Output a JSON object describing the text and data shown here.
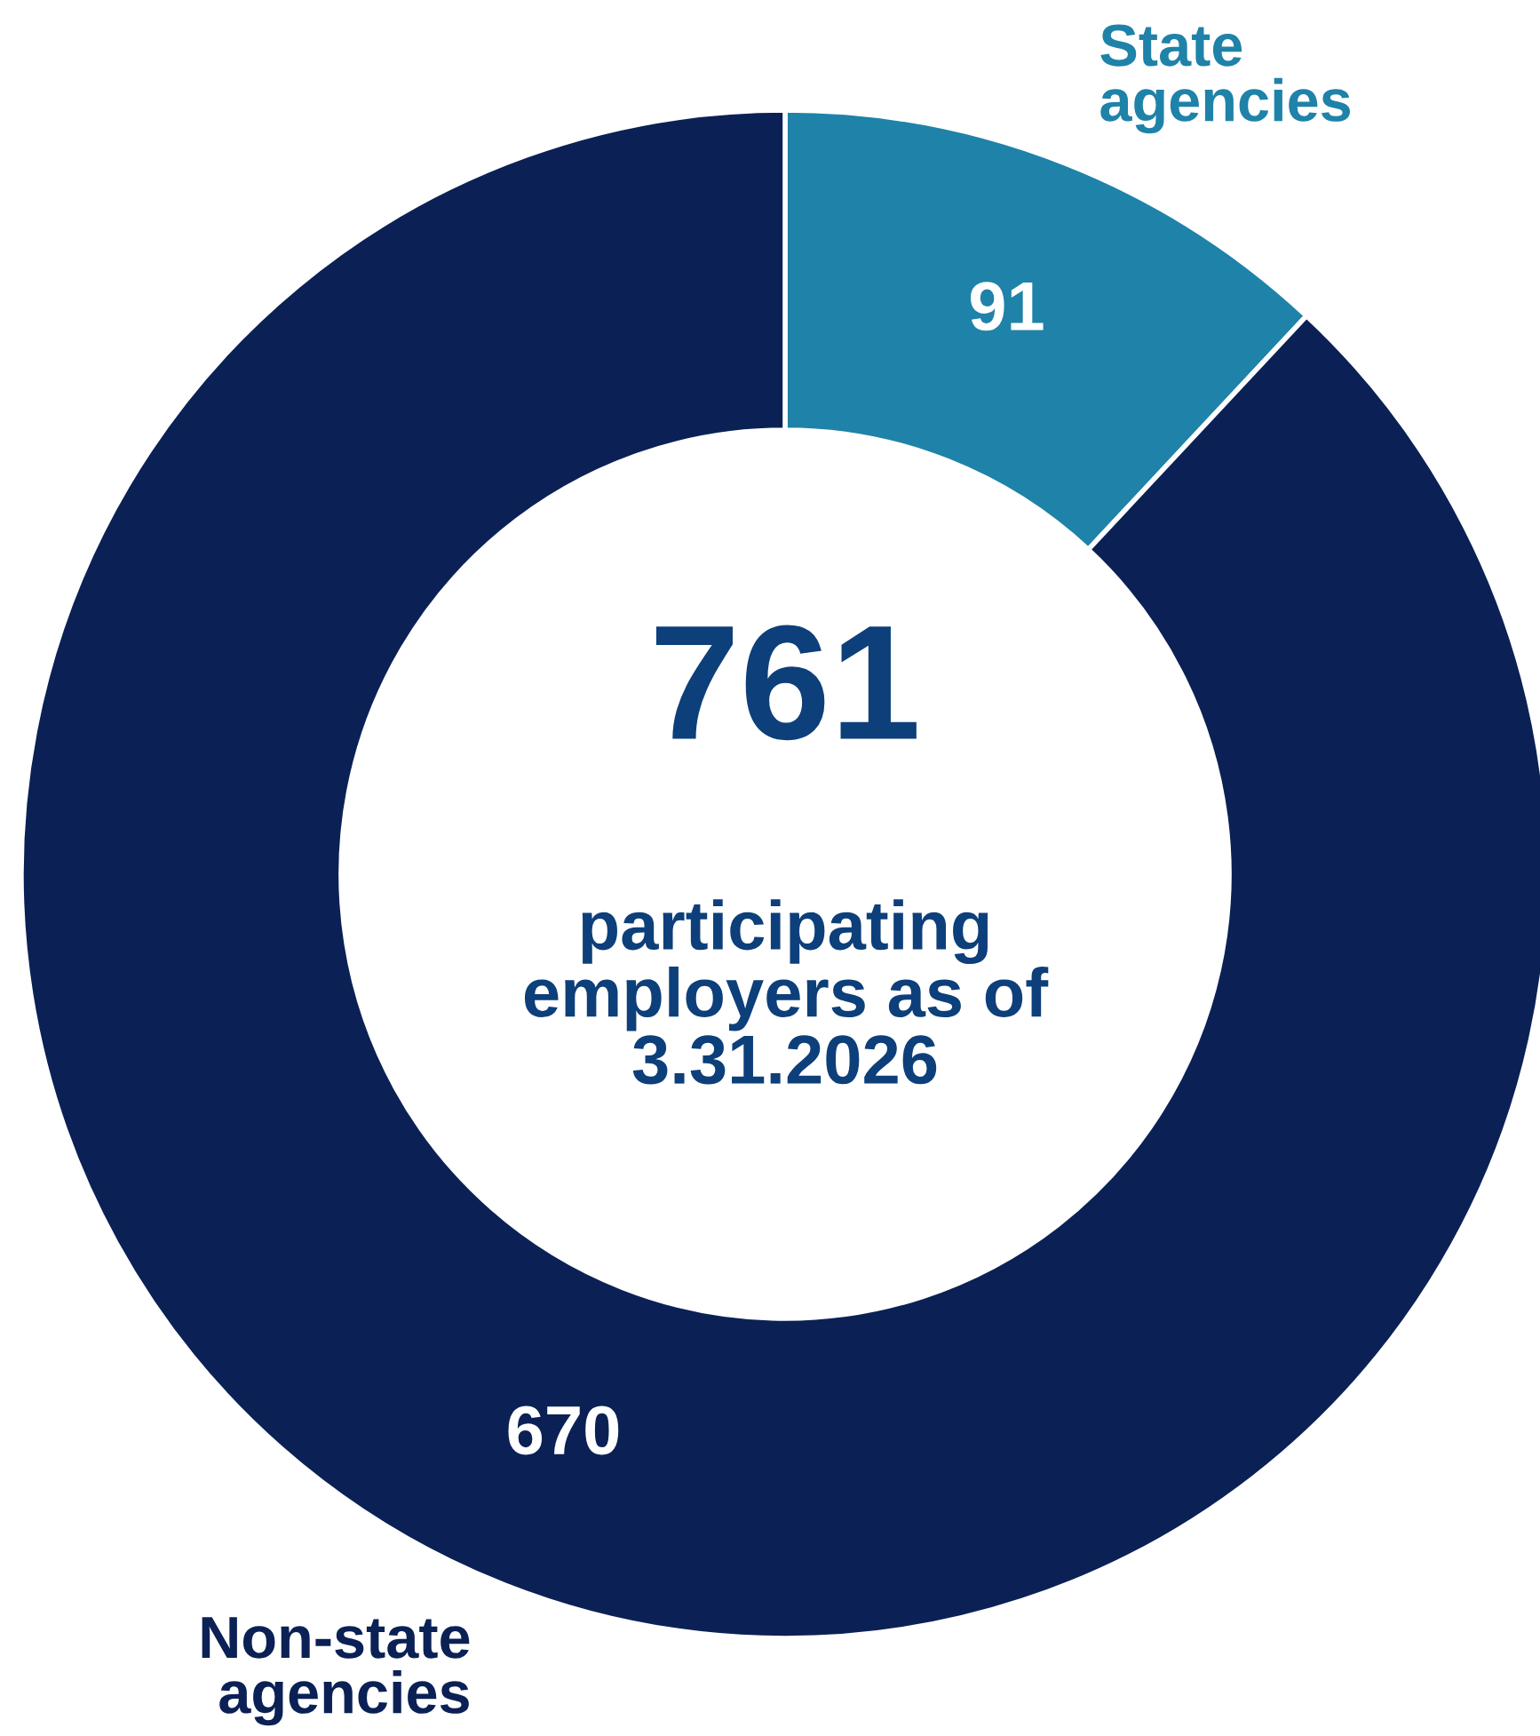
{
  "chart_data": {
    "type": "donut",
    "categories": [
      "State agencies",
      "Non-state agencies"
    ],
    "values": [
      91,
      670
    ],
    "colors": [
      "#1f82a8",
      "#0b2155"
    ],
    "data_labels": true,
    "legend": false,
    "annotations": [
      "761",
      "participating\nemployers as of\n3.31.2026"
    ]
  }
}
